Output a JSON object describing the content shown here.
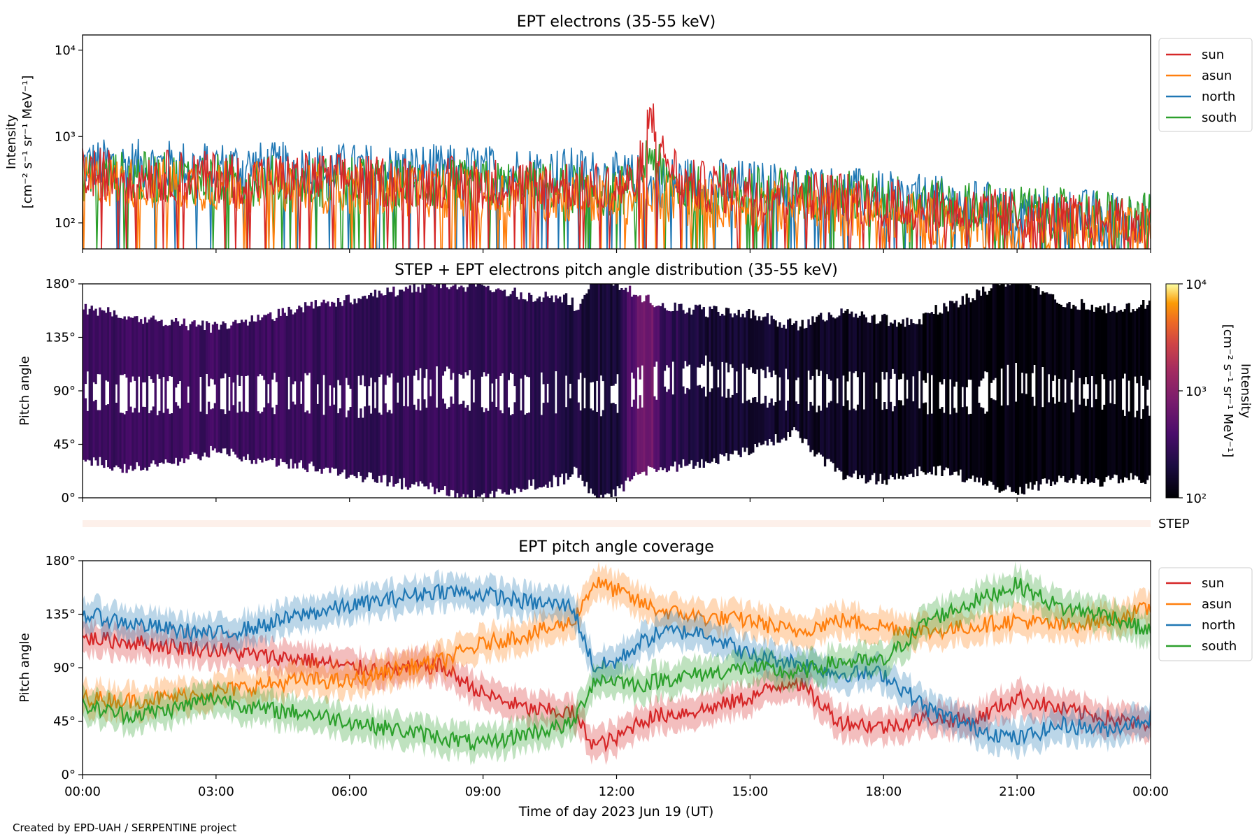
{
  "figure": {
    "credit": "Created by EPD-UAH / SERPENTINE project",
    "xlabel": "Time of day 2023 Jun 19 (UT)",
    "xticks": [
      "00:00",
      "03:00",
      "06:00",
      "09:00",
      "12:00",
      "15:00",
      "18:00",
      "21:00",
      "00:00"
    ],
    "colors": {
      "sun": "#d62728",
      "asun": "#ff7f0e",
      "north": "#1f77b4",
      "south": "#2ca02c"
    }
  },
  "chart_data": [
    {
      "type": "line",
      "title": "EPT electrons (35-55 keV)",
      "ylabel_line1": "Intensity",
      "ylabel_line2": "[cm⁻² s⁻¹ sr⁻¹ MeV⁻¹]",
      "yscale": "log",
      "ylim": [
        50,
        15000
      ],
      "yticks": [
        {
          "v": 100,
          "label": "10²"
        },
        {
          "v": 1000,
          "label": "10³"
        },
        {
          "v": 10000,
          "label": "10⁴"
        }
      ],
      "xlim_hours": [
        0,
        24
      ],
      "legend_position": "outside-right",
      "x_hours": [
        0,
        1,
        2,
        3,
        4,
        5,
        6,
        7,
        8,
        9,
        10,
        11,
        11.5,
        12,
        12.5,
        12.75,
        13,
        13.5,
        14,
        15,
        16,
        17,
        18,
        19,
        20,
        21,
        22,
        23,
        24
      ],
      "series": [
        {
          "name": "sun",
          "values": [
            380,
            360,
            350,
            340,
            320,
            330,
            320,
            300,
            300,
            290,
            280,
            270,
            260,
            250,
            300,
            1800,
            600,
            280,
            260,
            240,
            220,
            200,
            170,
            150,
            130,
            120,
            110,
            100,
            95
          ]
        },
        {
          "name": "asun",
          "values": [
            300,
            290,
            280,
            270,
            260,
            260,
            250,
            240,
            230,
            220,
            210,
            200,
            190,
            180,
            200,
            150,
            200,
            180,
            170,
            160,
            150,
            140,
            120,
            110,
            100,
            95,
            90,
            85,
            80
          ]
        },
        {
          "name": "north",
          "values": [
            480,
            470,
            460,
            450,
            440,
            430,
            420,
            420,
            410,
            400,
            390,
            380,
            360,
            330,
            320,
            250,
            300,
            300,
            290,
            270,
            250,
            230,
            200,
            180,
            160,
            140,
            130,
            120,
            110
          ]
        },
        {
          "name": "south",
          "values": [
            350,
            340,
            330,
            320,
            310,
            300,
            290,
            280,
            270,
            270,
            260,
            250,
            240,
            230,
            260,
            700,
            350,
            250,
            240,
            230,
            220,
            210,
            190,
            170,
            150,
            140,
            130,
            120,
            110
          ]
        }
      ]
    },
    {
      "type": "heatmap",
      "title": "STEP + EPT electrons pitch angle distribution (35-55 keV)",
      "ylabel": "Pitch angle",
      "ylim": [
        0,
        180
      ],
      "yticks": [
        "0°",
        "45°",
        "90°",
        "135°",
        "180°"
      ],
      "xlim_hours": [
        0,
        24
      ],
      "colorbar": {
        "label_line1": "Intensity",
        "label_line2": "[cm⁻² s⁻¹ sr⁻¹ MeV⁻¹]",
        "scale": "log",
        "range": [
          100,
          10000
        ],
        "ticks": [
          "10²",
          "10³",
          "10⁴"
        ],
        "colormap": "inferno"
      },
      "step_label": "STEP",
      "intensity_by_hour": {
        "x_hours": [
          0,
          2,
          4,
          6,
          8,
          10,
          11,
          12,
          12.75,
          13,
          14,
          16,
          18,
          20,
          22,
          24
        ],
        "values": [
          320,
          330,
          320,
          300,
          290,
          270,
          200,
          180,
          800,
          300,
          170,
          150,
          130,
          115,
          105,
          100
        ]
      }
    },
    {
      "type": "line",
      "title": "EPT pitch angle coverage",
      "ylabel": "Pitch angle",
      "ylim": [
        0,
        180
      ],
      "yticks": [
        "0°",
        "45°",
        "90°",
        "135°",
        "180°"
      ],
      "xlim_hours": [
        0,
        24
      ],
      "legend_position": "outside-right",
      "x_hours": [
        0,
        1,
        2,
        3,
        4,
        5,
        6,
        7,
        8,
        9,
        10,
        11,
        11.5,
        12,
        12.5,
        13,
        14,
        15,
        16,
        17,
        18,
        19,
        20,
        21,
        22,
        23,
        24
      ],
      "series": [
        {
          "name": "sun",
          "values": [
            115,
            112,
            108,
            105,
            100,
            97,
            90,
            88,
            92,
            68,
            55,
            52,
            25,
            30,
            45,
            50,
            55,
            65,
            80,
            45,
            40,
            48,
            45,
            65,
            55,
            48,
            40
          ]
        },
        {
          "name": "asun",
          "values": [
            65,
            62,
            65,
            70,
            75,
            80,
            78,
            88,
            95,
            110,
            118,
            128,
            162,
            155,
            145,
            138,
            132,
            130,
            120,
            130,
            125,
            120,
            125,
            130,
            125,
            130,
            140
          ]
        },
        {
          "name": "north",
          "values": [
            135,
            128,
            122,
            118,
            125,
            135,
            142,
            148,
            155,
            152,
            145,
            142,
            90,
            95,
            110,
            120,
            120,
            100,
            95,
            85,
            85,
            55,
            40,
            30,
            42,
            38,
            48
          ]
        },
        {
          "name": "south",
          "values": [
            58,
            50,
            55,
            65,
            55,
            52,
            45,
            38,
            32,
            25,
            35,
            42,
            80,
            80,
            75,
            80,
            85,
            90,
            85,
            95,
            95,
            130,
            145,
            160,
            140,
            135,
            120
          ]
        }
      ]
    }
  ]
}
